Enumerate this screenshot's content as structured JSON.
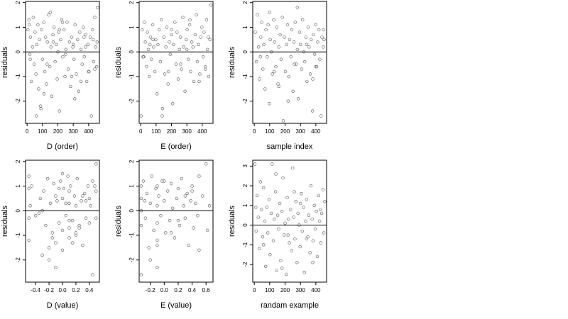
{
  "chart_data": [
    {
      "type": "scatter",
      "title": "",
      "xlabel": "D (order)",
      "ylabel": "residuals",
      "xlim": [
        -10,
        470
      ],
      "ylim": [
        -2.9,
        2.05
      ],
      "xticks": [
        0,
        100,
        200,
        300,
        400
      ],
      "xtick_labels": [
        "0",
        "100",
        "200",
        "300",
        "400"
      ],
      "yticks": [
        -2,
        -1,
        0,
        1,
        2
      ],
      "ytick_labels": [
        "-2",
        "-1",
        "0",
        "1",
        "2"
      ],
      "hline": 0,
      "point_style": "open-circle",
      "x": [
        5,
        12,
        18,
        22,
        28,
        35,
        40,
        46,
        52,
        58,
        63,
        70,
        75,
        80,
        88,
        94,
        100,
        108,
        115,
        120,
        126,
        132,
        140,
        148,
        155,
        160,
        168,
        175,
        182,
        190,
        196,
        204,
        210,
        218,
        225,
        232,
        240,
        246,
        252,
        260,
        268,
        275,
        282,
        290,
        298,
        305,
        312,
        320,
        328,
        335,
        342,
        350,
        358,
        365,
        372,
        380,
        388,
        395,
        402,
        410,
        418,
        425,
        432,
        440,
        446,
        452,
        458,
        20,
        60,
        110,
        150,
        200,
        250,
        300,
        350,
        400,
        430,
        90,
        170,
        230,
        310,
        380,
        440,
        15,
        130,
        210,
        290,
        370,
        455
      ],
      "y": [
        0.9,
        1.3,
        -0.1,
        0.6,
        -1.2,
        0.2,
        1.4,
        -0.5,
        0.8,
        -0.9,
        0.3,
        1.1,
        -1.5,
        0.5,
        -2.2,
        0.9,
        -0.3,
        1.2,
        -0.8,
        0.6,
        -1.3,
        0.4,
        1.5,
        -0.6,
        0.2,
        -1.8,
        0.7,
        1.0,
        -0.4,
        0.3,
        -1.1,
        0.8,
        -2.4,
        0.5,
        1.3,
        -0.2,
        0.9,
        -1.0,
        0.1,
        1.2,
        -0.7,
        0.4,
        -1.4,
        0.6,
        0.2,
        -0.3,
        1.1,
        -0.9,
        0.5,
        -1.6,
        0.8,
        0.1,
        -0.5,
        1.0,
        -0.2,
        0.7,
        -1.2,
        0.3,
        -0.8,
        0.6,
        -2.6,
        0.9,
        -0.4,
        1.4,
        0.2,
        -0.6,
        1.8,
        -0.3,
        -2.6,
        -1.7,
        1.6,
        0.0,
        -0.1,
        0.3,
        -1.2,
        -0.8,
        0.5,
        -2.3,
        0.4,
        1.2,
        -1.9,
        0.2,
        -0.7,
        1.1,
        -0.5,
        0.9,
        -1.0,
        0.6,
        0.4
      ]
    },
    {
      "type": "scatter",
      "title": "",
      "xlabel": "E (order)",
      "ylabel": "residuals",
      "xlim": [
        -10,
        470
      ],
      "ylim": [
        -2.9,
        2.05
      ],
      "xticks": [
        0,
        100,
        200,
        300,
        400
      ],
      "xtick_labels": [
        "0",
        "100",
        "200",
        "300",
        "400"
      ],
      "yticks": [
        -2,
        -1,
        0,
        1,
        2
      ],
      "ytick_labels": [
        "-2",
        "-1",
        "0",
        "1",
        "2"
      ],
      "hline": 0,
      "point_style": "open-circle",
      "x": [
        3,
        10,
        16,
        24,
        30,
        38,
        44,
        50,
        56,
        64,
        70,
        78,
        84,
        92,
        98,
        106,
        112,
        120,
        128,
        134,
        142,
        150,
        156,
        164,
        170,
        178,
        186,
        192,
        200,
        208,
        214,
        222,
        230,
        236,
        244,
        252,
        258,
        266,
        274,
        280,
        288,
        296,
        302,
        310,
        318,
        324,
        332,
        340,
        346,
        354,
        362,
        368,
        376,
        384,
        390,
        398,
        406,
        412,
        420,
        428,
        434,
        442,
        450,
        456,
        20,
        80,
        140,
        200,
        260,
        320,
        380,
        440,
        60,
        180,
        300,
        420
      ],
      "y": [
        -2.6,
        0.9,
        -0.2,
        1.2,
        0.4,
        -0.6,
        0.8,
        0.1,
        -1.0,
        0.6,
        -0.3,
        1.1,
        0.2,
        -0.8,
        0.5,
        -1.7,
        0.3,
        0.9,
        -0.4,
        1.3,
        -2.3,
        0.6,
        -0.9,
        0.2,
        1.0,
        -1.3,
        0.4,
        -0.1,
        0.7,
        -2.1,
        0.3,
        1.2,
        -0.5,
        0.8,
        -1.1,
        0.1,
        0.6,
        -0.7,
        1.4,
        0.2,
        -1.6,
        0.5,
        0.9,
        -0.3,
        1.1,
        -0.8,
        0.4,
        0.2,
        -1.2,
        0.7,
        1.5,
        -0.4,
        0.3,
        -0.9,
        0.6,
        1.0,
        -0.2,
        0.8,
        -0.6,
        1.3,
        0.1,
        -1.0,
        0.5,
        1.9,
        -0.2,
        0.5,
        -2.6,
        0.9,
        -0.5,
        1.3,
        -1.2,
        0.6,
        0.3,
        -0.8,
        0.1,
        -0.7
      ]
    },
    {
      "type": "scatter",
      "title": "",
      "xlabel": "sample index",
      "ylabel": "residuals",
      "xlim": [
        -10,
        470
      ],
      "ylim": [
        -2.9,
        2.05
      ],
      "xticks": [
        0,
        100,
        200,
        300,
        400
      ],
      "xtick_labels": [
        "0",
        "100",
        "200",
        "300",
        "400"
      ],
      "yticks": [
        -2,
        -1,
        0,
        1,
        2
      ],
      "ytick_labels": [
        "-2",
        "-1",
        "0",
        "1",
        "2"
      ],
      "hline": 0,
      "point_style": "open-circle",
      "x": [
        6,
        14,
        20,
        28,
        34,
        42,
        48,
        56,
        62,
        70,
        76,
        84,
        90,
        98,
        104,
        112,
        118,
        126,
        132,
        140,
        146,
        154,
        160,
        168,
        174,
        182,
        188,
        196,
        202,
        210,
        216,
        224,
        230,
        238,
        244,
        252,
        258,
        266,
        272,
        280,
        286,
        294,
        300,
        308,
        314,
        322,
        328,
        336,
        342,
        350,
        356,
        364,
        370,
        378,
        384,
        392,
        398,
        406,
        412,
        420,
        426,
        434,
        440,
        448,
        454,
        40,
        100,
        160,
        220,
        280,
        340,
        400,
        450,
        130,
        260,
        380
      ],
      "y": [
        0.8,
        -0.4,
        1.5,
        0.2,
        -1.1,
        0.6,
        1.2,
        -0.7,
        0.3,
        -1.5,
        0.9,
        -0.2,
        1.1,
        -2.1,
        0.5,
        0.0,
        -0.9,
        1.3,
        0.4,
        -0.6,
        1.0,
        -1.3,
        0.2,
        0.7,
        -0.3,
        1.4,
        -2.8,
        0.6,
        -0.8,
        0.3,
        1.1,
        -1.0,
        0.5,
        -0.2,
        0.9,
        -1.6,
        0.4,
        1.2,
        -0.5,
        0.1,
        -1.9,
        0.8,
        0.3,
        -0.7,
        1.3,
        0.0,
        -0.4,
        0.6,
        -1.2,
        1.0,
        0.2,
        -0.9,
        0.5,
        -2.4,
        0.7,
        -0.1,
        1.1,
        -0.6,
        0.4,
        0.9,
        -0.3,
        -2.6,
        0.6,
        0.2,
        0.5,
        -0.2,
        1.6,
        -1.4,
        -2.0,
        1.8,
        0.3,
        -0.6,
        0.9,
        -0.8,
        -0.5,
        -1.1
      ]
    },
    {
      "type": "scatter",
      "title": "",
      "xlabel": "D (value)",
      "ylabel": "residuals",
      "xlim": [
        -0.55,
        0.55
      ],
      "ylim": [
        -2.9,
        2.05
      ],
      "xticks": [
        -0.4,
        -0.2,
        0.0,
        0.2,
        0.4
      ],
      "xtick_labels": [
        "-0.4",
        "-0.2",
        "0.0",
        "0.2",
        "0.4"
      ],
      "yticks": [
        -2,
        -1,
        0,
        1,
        2
      ],
      "ytick_labels": [
        "-2",
        "-1",
        "0",
        "1",
        "2"
      ],
      "hline": 0,
      "point_style": "open-circle",
      "x": [
        -0.5,
        -0.5,
        -0.5,
        -0.5,
        -0.48,
        -0.46,
        -0.35,
        -0.33,
        -0.3,
        -0.28,
        -0.25,
        -0.22,
        -0.2,
        -0.18,
        -0.15,
        -0.13,
        -0.1,
        -0.1,
        -0.1,
        -0.08,
        -0.05,
        -0.03,
        0.0,
        0.0,
        0.0,
        0.02,
        0.05,
        0.08,
        0.1,
        0.1,
        0.1,
        0.1,
        0.12,
        0.15,
        0.18,
        0.2,
        0.2,
        0.22,
        0.25,
        0.28,
        0.3,
        0.33,
        0.35,
        0.38,
        0.4,
        0.4,
        0.42,
        0.45,
        0.48,
        0.5,
        0.5,
        0.5,
        -0.4,
        -0.2,
        0.0,
        0.2,
        0.3,
        -0.3,
        0.1,
        0.45,
        -0.15,
        0.05,
        0.25,
        -0.05,
        0.15,
        0.35
      ],
      "y": [
        1.4,
        0.9,
        -0.3,
        -1.2,
        0.2,
        1.0,
        -0.1,
        0.5,
        -1.8,
        0.8,
        -0.6,
        1.3,
        -1.5,
        0.3,
        -0.9,
        1.1,
        0.6,
        -1.3,
        -2.3,
        0.4,
        -0.5,
        1.2,
        0.5,
        -0.8,
        -1.6,
        0.9,
        -0.2,
        1.4,
        0.3,
        0.8,
        -0.7,
        -1.1,
        1.0,
        -0.4,
        0.6,
        -1.0,
        0.2,
        1.3,
        -0.6,
        0.4,
        -1.4,
        0.7,
        -0.3,
        1.0,
        0.5,
        -0.5,
        0.2,
        -2.6,
        1.0,
        1.9,
        0.8,
        -0.3,
        -0.2,
        -2.0,
        1.5,
        -0.9,
        0.6,
        0.0,
        -0.4,
        1.2,
        -1.1,
        0.3,
        -0.7,
        0.9,
        -1.3,
        0.4
      ]
    },
    {
      "type": "scatter",
      "title": "",
      "xlabel": "E (value)",
      "ylabel": "residuals",
      "xlim": [
        -0.36,
        0.7
      ],
      "ylim": [
        -2.9,
        2.05
      ],
      "xticks": [
        -0.2,
        0.0,
        0.2,
        0.4,
        0.6
      ],
      "xtick_labels": [
        "-0.2",
        "0.0",
        "0.2",
        "0.4",
        "0.6"
      ],
      "yticks": [
        -2,
        -1,
        0,
        1,
        2
      ],
      "ytick_labels": [
        "-2",
        "-1",
        "0",
        "1",
        "2"
      ],
      "hline": 0,
      "point_style": "open-circle",
      "x": [
        -0.33,
        -0.33,
        -0.33,
        -0.33,
        -0.33,
        -0.3,
        -0.27,
        -0.25,
        -0.22,
        -0.2,
        -0.18,
        -0.15,
        -0.12,
        -0.1,
        -0.1,
        -0.1,
        -0.1,
        -0.1,
        -0.08,
        -0.05,
        -0.03,
        0.0,
        0.02,
        0.05,
        0.08,
        0.1,
        0.12,
        0.15,
        0.18,
        0.2,
        0.22,
        0.25,
        0.28,
        0.3,
        0.33,
        0.35,
        0.38,
        0.4,
        0.42,
        0.45,
        0.48,
        0.5,
        0.55,
        0.6,
        0.62,
        0.65,
        -0.28,
        -0.1,
        0.1,
        0.3,
        0.5,
        -0.2,
        0.0,
        0.2,
        0.4
      ],
      "y": [
        1.0,
        0.5,
        0.0,
        -0.6,
        -2.6,
        1.2,
        -0.3,
        0.7,
        -1.5,
        0.3,
        1.4,
        -0.8,
        0.9,
        1.0,
        0.2,
        -0.5,
        -1.2,
        -2.3,
        0.6,
        -0.2,
        1.2,
        0.4,
        -0.9,
        0.8,
        -0.4,
        1.1,
        0.1,
        -1.1,
        0.5,
        0.9,
        -0.6,
        1.3,
        0.2,
        -0.3,
        0.7,
        -1.4,
        0.4,
        1.0,
        -0.7,
        0.3,
        -0.2,
        1.4,
        0.6,
        1.9,
        -0.8,
        0.2,
        0.4,
        -1.4,
        -0.9,
        0.6,
        -1.6,
        -2.0,
        1.2,
        -0.4,
        0.8
      ]
    },
    {
      "type": "scatter",
      "title": "",
      "xlabel": "randam example",
      "ylabel": "residuals",
      "xlim": [
        -10,
        470
      ],
      "ylim": [
        -2.9,
        3.3
      ],
      "xticks": [
        0,
        100,
        200,
        300,
        400
      ],
      "xtick_labels": [
        "0",
        "100",
        "200",
        "300",
        "400"
      ],
      "yticks": [
        -2,
        -1,
        0,
        1,
        2,
        3
      ],
      "ytick_labels": [
        "-2",
        "-1",
        "0",
        "1",
        "2",
        "3"
      ],
      "hline": 0,
      "point_style": "open-circle",
      "x": [
        4,
        12,
        18,
        26,
        32,
        40,
        46,
        54,
        60,
        68,
        74,
        82,
        88,
        96,
        102,
        110,
        116,
        124,
        130,
        138,
        144,
        152,
        158,
        166,
        172,
        180,
        186,
        194,
        200,
        208,
        214,
        222,
        228,
        236,
        242,
        250,
        256,
        264,
        270,
        278,
        284,
        292,
        298,
        306,
        312,
        320,
        326,
        334,
        340,
        348,
        354,
        362,
        368,
        376,
        382,
        390,
        396,
        404,
        410,
        418,
        424,
        432,
        438,
        446,
        452,
        458,
        60,
        140,
        220,
        300,
        380,
        10,
        180,
        260,
        340,
        430
      ],
      "y": [
        3.1,
        -0.3,
        1.5,
        0.4,
        -1.2,
        2.2,
        0.8,
        -0.6,
        1.9,
        0.2,
        -2.1,
        0.9,
        -0.4,
        1.3,
        -1.5,
        0.6,
        3.1,
        -0.8,
        0.3,
        1.7,
        -2.3,
        0.5,
        -0.2,
        1.1,
        -1.8,
        0.7,
        2.4,
        -0.5,
        0.1,
        -2.5,
        1.4,
        0.3,
        -0.9,
        0.8,
        -1.3,
        2.9,
        0.4,
        -0.7,
        1.2,
        -1.9,
        0.6,
        0.0,
        -1.1,
        1.6,
        -0.3,
        0.9,
        -2.4,
        0.2,
        1.3,
        -0.6,
        0.5,
        -1.4,
        2.0,
        0.3,
        -0.8,
        1.0,
        -0.2,
        0.7,
        -1.6,
        1.5,
        0.2,
        -0.9,
        0.6,
        1.8,
        -0.4,
        1.2,
        -1.0,
        2.6,
        -0.5,
        1.1,
        -1.9,
        0.9,
        -2.2,
        1.7,
        -0.7,
        0.8
      ]
    }
  ]
}
